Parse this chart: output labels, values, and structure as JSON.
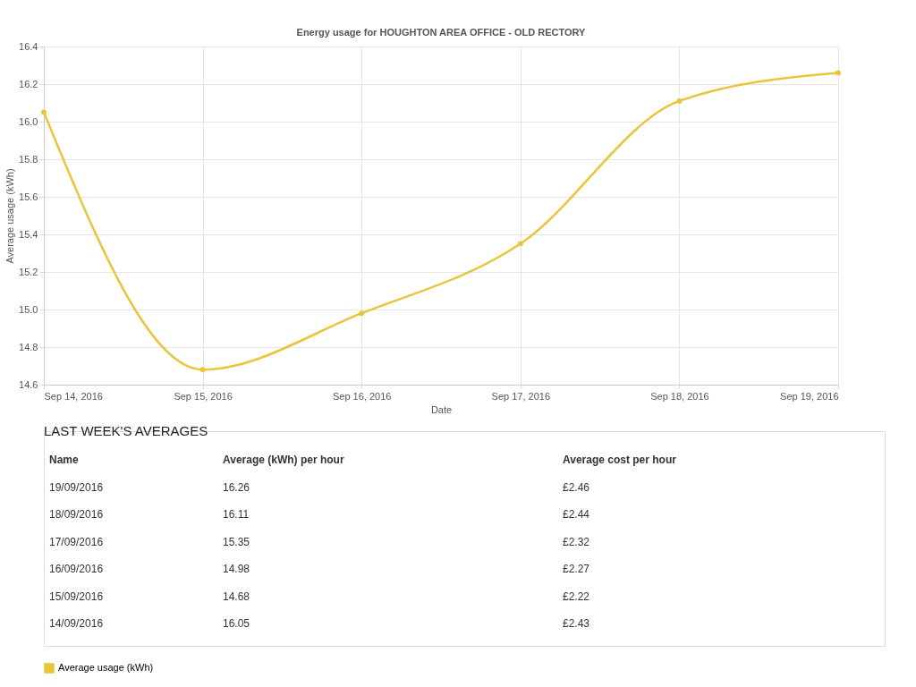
{
  "chart_data": {
    "type": "line",
    "title": "Energy usage for HOUGHTON AREA OFFICE - OLD RECTORY",
    "xlabel": "Date",
    "ylabel": "Average usage (kWh)",
    "x": [
      "2016-09-14",
      "2016-09-15",
      "2016-09-16",
      "2016-09-17",
      "2016-09-18",
      "2016-09-19"
    ],
    "series": [
      {
        "name": "Average usage (kWh)",
        "color": "#e8c53a",
        "values": [
          16.05,
          14.68,
          14.98,
          15.35,
          16.11,
          16.26
        ]
      }
    ],
    "xlim": [
      "2016-09-14",
      "2016-09-19"
    ],
    "xticks": [
      {
        "value": "2016-09-14",
        "label": "Sep 14, 2016"
      },
      {
        "value": "2016-09-15",
        "label": "Sep 15, 2016"
      },
      {
        "value": "2016-09-16",
        "label": "Sep 16, 2016"
      },
      {
        "value": "2016-09-17",
        "label": "Sep 17, 2016"
      },
      {
        "value": "2016-09-18",
        "label": "Sep 18, 2016"
      },
      {
        "value": "2016-09-19",
        "label": "Sep 19, 2016"
      }
    ],
    "ylim": [
      14.6,
      16.4
    ],
    "yticks": [
      {
        "value": 14.6,
        "label": "14.6"
      },
      {
        "value": 14.8,
        "label": "14.8"
      },
      {
        "value": 15,
        "label": "15.0"
      },
      {
        "value": 15.2,
        "label": "15.2"
      },
      {
        "value": 15.4,
        "label": "15.4"
      },
      {
        "value": 15.6,
        "label": "15.6"
      },
      {
        "value": 15.8,
        "label": "15.8"
      },
      {
        "value": 16,
        "label": "16.0"
      },
      {
        "value": 16.2,
        "label": "16.2"
      },
      {
        "value": 16.4,
        "label": "16.4"
      }
    ],
    "grid": true,
    "legend": "bottom",
    "marker": "circle",
    "line_style": "solid",
    "annotations": [
      "LAST WEEK'S AVERAGES",
      "Name",
      "Average (kWh) per hour",
      "Average cost per hour",
      "19/09/2016",
      "16.26",
      "£2.46",
      "18/09/2016",
      "16.11",
      "£2.44",
      "17/09/2016",
      "15.35",
      "£2.32",
      "16/09/2016",
      "14.98",
      "£2.27",
      "15/09/2016",
      "14.68",
      "£2.22",
      "14/09/2016",
      "16.05",
      "£2.43"
    ]
  }
}
